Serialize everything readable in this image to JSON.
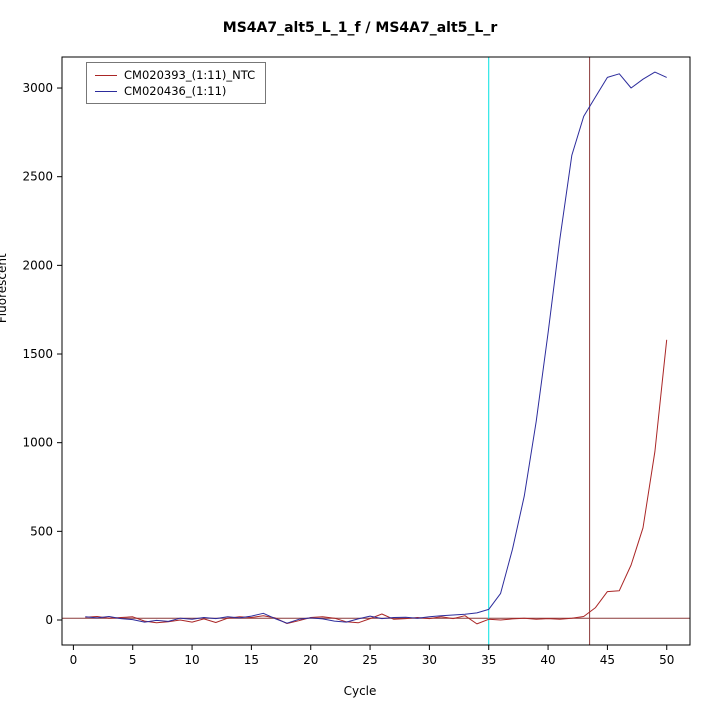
{
  "title": "MS4A7_alt5_L_1_f / MS4A7_alt5_L_r",
  "chart_data": {
    "type": "line",
    "title": "MS4A7_alt5_L_1_f / MS4A7_alt5_L_r",
    "xlabel": "Cycle",
    "ylabel": "Fluorescent",
    "xlim": [
      -0.96,
      51.96
    ],
    "ylim": [
      -141,
      3175
    ],
    "x_ticks": [
      0,
      5,
      10,
      15,
      20,
      25,
      30,
      35,
      40,
      45,
      50
    ],
    "y_ticks": [
      0,
      500,
      1000,
      1500,
      2000,
      2500,
      3000
    ],
    "grid": false,
    "legend_position": "top-left",
    "x": [
      1,
      2,
      3,
      4,
      5,
      6,
      7,
      8,
      9,
      10,
      11,
      12,
      13,
      14,
      15,
      16,
      17,
      18,
      19,
      20,
      21,
      22,
      23,
      24,
      25,
      26,
      27,
      28,
      29,
      30,
      31,
      32,
      33,
      34,
      35,
      36,
      37,
      38,
      39,
      40,
      41,
      42,
      43,
      44,
      45,
      46,
      47,
      48,
      49,
      50
    ],
    "series": [
      {
        "name": "CM020393_(1:11)_NTC",
        "color": "#aa2626",
        "values": [
          15,
          20,
          10,
          14,
          18,
          -6,
          -16,
          -10,
          0,
          -12,
          6,
          -14,
          10,
          18,
          14,
          24,
          12,
          -20,
          -4,
          14,
          18,
          10,
          -10,
          -16,
          8,
          34,
          4,
          8,
          14,
          8,
          18,
          8,
          24,
          -22,
          4,
          0,
          6,
          10,
          4,
          8,
          4,
          10,
          20,
          70,
          160,
          165,
          310,
          520,
          950,
          1580
        ]
      },
      {
        "name": "CM020436_(1:11)",
        "color": "#2c2c9c",
        "values": [
          18,
          12,
          20,
          8,
          2,
          -12,
          -2,
          -8,
          10,
          4,
          14,
          8,
          18,
          12,
          22,
          38,
          8,
          -18,
          4,
          12,
          6,
          -6,
          -12,
          6,
          22,
          8,
          14,
          16,
          10,
          18,
          24,
          28,
          32,
          40,
          60,
          150,
          400,
          700,
          1120,
          1620,
          2150,
          2620,
          2840,
          2950,
          3060,
          3080,
          3000,
          3050,
          3090,
          3060
        ]
      }
    ],
    "vlines": [
      {
        "x": 35,
        "color": "#00e0e0",
        "name": "cyan-marker-line"
      },
      {
        "x": 43.5,
        "color": "#8b3a3a",
        "name": "darkred-marker-line"
      }
    ],
    "hlines": [
      {
        "y": 10,
        "color": "#8b3a3a",
        "name": "threshold-line"
      }
    ]
  }
}
